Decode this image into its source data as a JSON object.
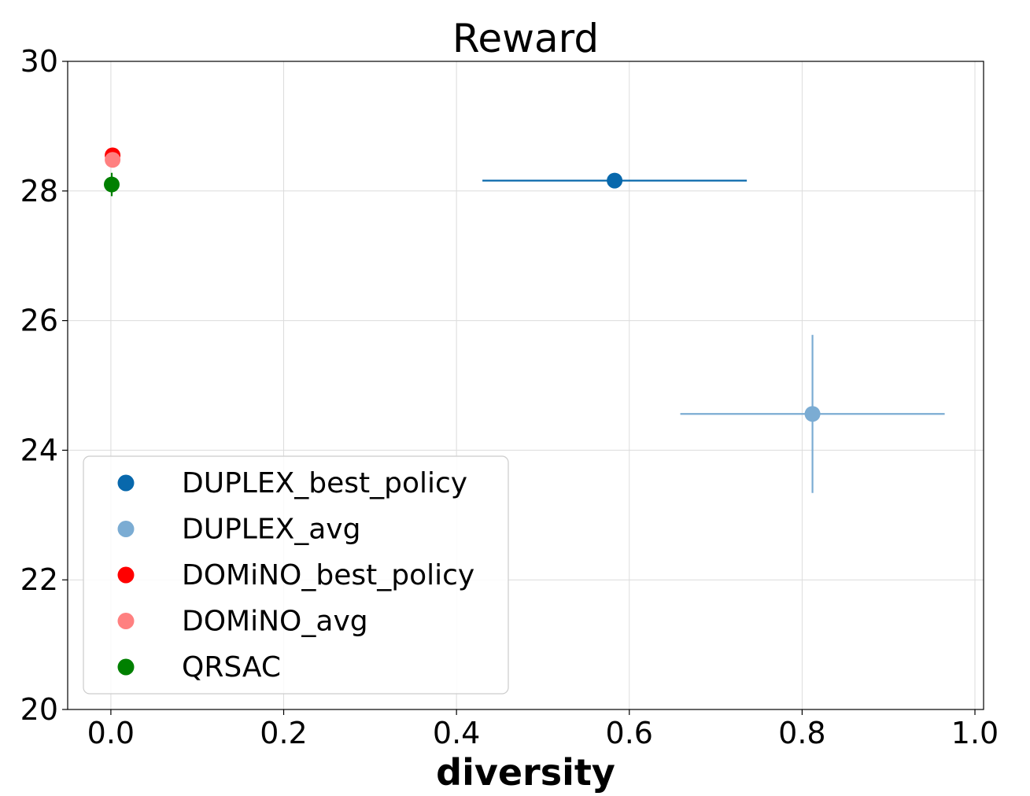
{
  "chart_data": {
    "type": "scatter",
    "title": "Reward",
    "xlabel": "diversity",
    "ylabel": "",
    "xlim": [
      -0.05,
      1.01
    ],
    "ylim": [
      20,
      30
    ],
    "x_ticks": [
      0.0,
      0.2,
      0.4,
      0.6,
      0.8,
      1.0
    ],
    "x_tick_labels": [
      "0.0",
      "0.2",
      "0.4",
      "0.6",
      "0.8",
      "1.0"
    ],
    "y_ticks": [
      20,
      22,
      24,
      26,
      28,
      30
    ],
    "y_tick_labels": [
      "20",
      "22",
      "24",
      "26",
      "28",
      "30"
    ],
    "grid": true,
    "legend_position": "lower-left",
    "series": [
      {
        "name": "DUPLEX_best_policy",
        "color": "#0868ac",
        "x": 0.583,
        "y": 28.16,
        "xerr": 0.153,
        "yerr": 0.0
      },
      {
        "name": "DUPLEX_avg",
        "color": "#7bacd3",
        "x": 0.812,
        "y": 24.56,
        "xerr": 0.153,
        "yerr": 1.22
      },
      {
        "name": "DOMiNO_best_policy",
        "color": "#ff0000",
        "x": 0.002,
        "y": 28.55,
        "xerr": 0.0,
        "yerr": 0.05
      },
      {
        "name": "DOMiNO_avg",
        "color": "#ff8080",
        "x": 0.002,
        "y": 28.48,
        "xerr": 0.0,
        "yerr": 0.05
      },
      {
        "name": "QRSAC",
        "color": "#008000",
        "x": 0.001,
        "y": 28.1,
        "xerr": 0.0,
        "yerr": 0.18
      }
    ]
  }
}
